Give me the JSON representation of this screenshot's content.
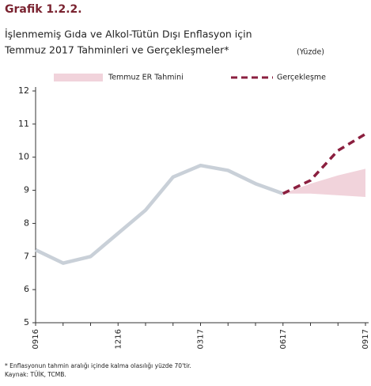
{
  "chart_data": {
    "type": "line",
    "title": "Grafik 1.2.2.",
    "subtitle": [
      "İşlenmemiş Gıda ve Alkol-Tütün Dışı Enflasyon için",
      "Temmuz 2017 Tahminleri ve Gerçekleşmeler*"
    ],
    "unit": "(Yüzde)",
    "categories": [
      "0916",
      null,
      null,
      "1216",
      null,
      null,
      "0317",
      null,
      null,
      "0617",
      null,
      null,
      "0917"
    ],
    "series": [
      {
        "color": "#c9d0d8",
        "values": [
          7.2,
          6.8,
          7.0,
          7.7,
          8.4,
          9.4,
          9.75,
          9.6,
          9.2,
          8.9,
          null,
          null,
          null
        ]
      },
      {
        "name": "Temmuz ER Tahmini",
        "color": "#f1d3db",
        "band": true,
        "upper": [
          null,
          null,
          null,
          null,
          null,
          null,
          null,
          null,
          null,
          8.9,
          9.2,
          9.45,
          9.65
        ],
        "lower": [
          null,
          null,
          null,
          null,
          null,
          null,
          null,
          null,
          null,
          8.9,
          8.9,
          8.85,
          8.8
        ]
      },
      {
        "name": "Gerçekleşme",
        "color": "#8b1f3f",
        "dashed": true,
        "values": [
          null,
          null,
          null,
          null,
          null,
          null,
          null,
          null,
          null,
          8.9,
          9.3,
          10.2,
          10.7
        ]
      }
    ],
    "ylim": [
      5,
      12
    ],
    "yticks": [
      5,
      6,
      7,
      8,
      9,
      10,
      11,
      12
    ],
    "grid": false,
    "footnotes": [
      "* Enflasyonun tahmin aralığı içinde kalma olasılığı yüzde 70'tir.",
      "Kaynak: TÜİK, TCMB."
    ]
  }
}
